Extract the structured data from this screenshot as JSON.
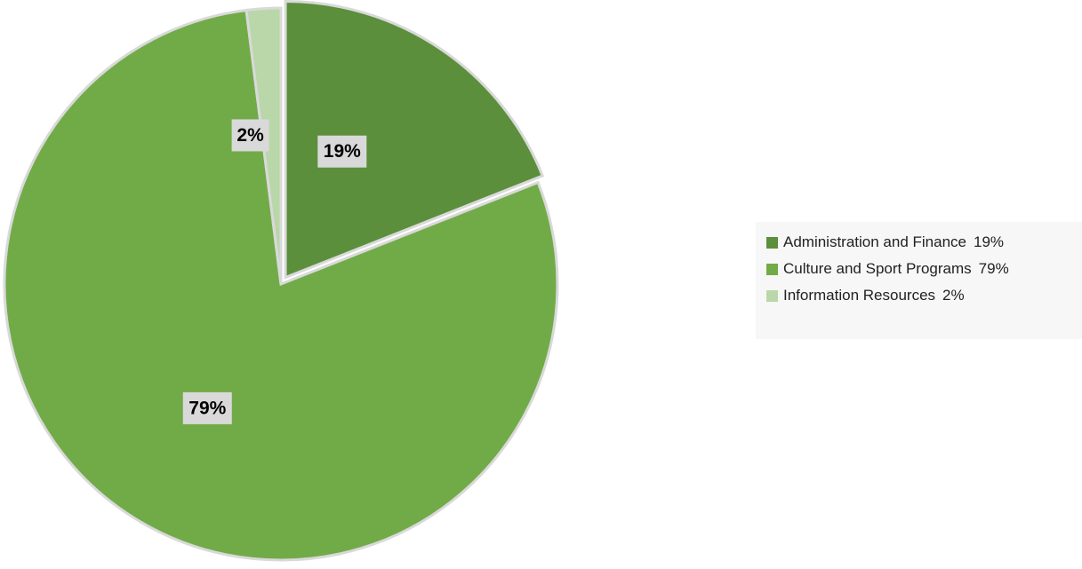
{
  "chart_data": {
    "type": "pie",
    "slices": [
      {
        "label": "Administration and Finance",
        "value": 19,
        "display": "19%",
        "color": "#5b8f3b",
        "exploded": true
      },
      {
        "label": "Culture and Sport Programs",
        "value": 79,
        "display": "79%",
        "color": "#71ab47",
        "exploded": false
      },
      {
        "label": "Information Resources",
        "value": 2,
        "display": "2%",
        "color": "#b9d7a8",
        "exploded": false
      }
    ],
    "legend_position": "right",
    "data_label_background": "#d9d9d9"
  }
}
